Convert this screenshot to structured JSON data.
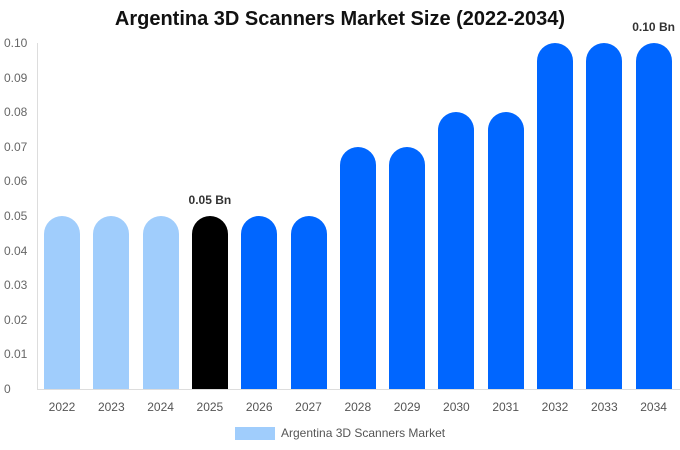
{
  "chart_data": {
    "type": "bar",
    "title": "Argentina 3D Scanners Market Size (2022-2034)",
    "xlabel": "",
    "ylabel": "",
    "ylim": [
      0,
      0.1
    ],
    "yticks": [
      "0",
      "0.01",
      "0.02",
      "0.03",
      "0.04",
      "0.05",
      "0.06",
      "0.07",
      "0.08",
      "0.09",
      "0.10"
    ],
    "categories": [
      "2022",
      "2023",
      "2024",
      "2025",
      "2026",
      "2027",
      "2028",
      "2029",
      "2030",
      "2031",
      "2032",
      "2033",
      "2034"
    ],
    "series": [
      {
        "name": "Argentina 3D Scanners Market",
        "values": [
          0.05,
          0.05,
          0.05,
          0.05,
          0.05,
          0.05,
          0.07,
          0.07,
          0.08,
          0.08,
          0.1,
          0.1,
          0.1
        ]
      }
    ],
    "bar_colors": [
      "#a0cdfc",
      "#a0cdfc",
      "#a0cdfc",
      "#000000",
      "#0066ff",
      "#0066ff",
      "#0066ff",
      "#0066ff",
      "#0066ff",
      "#0066ff",
      "#0066ff",
      "#0066ff",
      "#0066ff"
    ],
    "annotations": [
      {
        "category": "2025",
        "text": "0.05 Bn"
      },
      {
        "category": "2034",
        "text": "0.10 Bn"
      }
    ],
    "legend": {
      "position": "bottom",
      "label": "Argentina 3D Scanners Market",
      "color": "#a0cdfc"
    },
    "grid": false
  }
}
